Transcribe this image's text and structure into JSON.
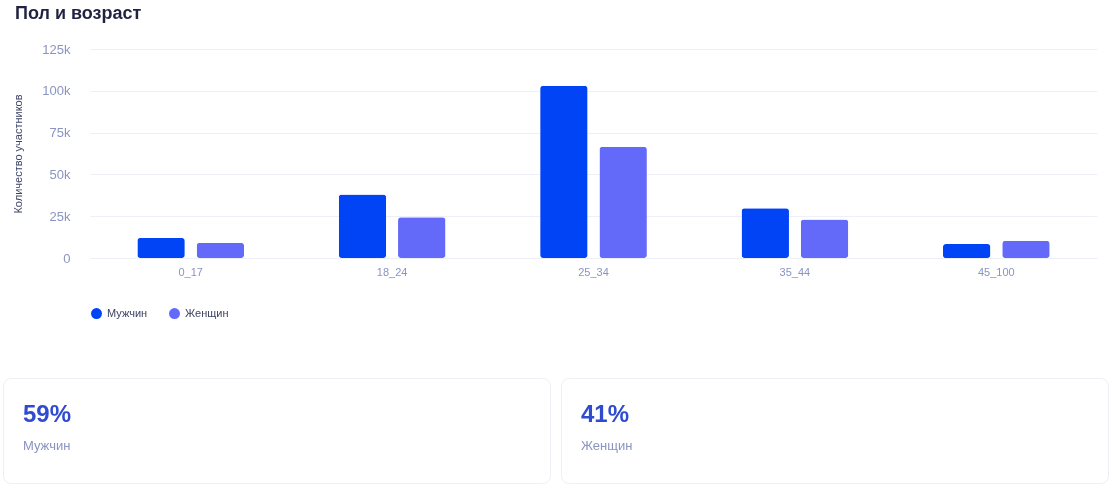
{
  "chart_data": [
    {
      "type": "bar",
      "title": "Пол и возраст",
      "ylabel": "Количество участников",
      "categories": [
        "0_17",
        "18_24",
        "25_34",
        "35_44",
        "45_100"
      ],
      "series": [
        {
          "name": "Мужчин",
          "color": "#0044f5",
          "values": [
            12000,
            38000,
            103000,
            29700,
            8300
          ]
        },
        {
          "name": "Женщин",
          "color": "#6369f8",
          "values": [
            9000,
            24400,
            66500,
            23100,
            10200
          ]
        }
      ],
      "ylim": [
        0,
        125000
      ],
      "yticks": [
        {
          "value": 0,
          "label": "0"
        },
        {
          "value": 25000,
          "label": "25k"
        },
        {
          "value": 50000,
          "label": "50k"
        },
        {
          "value": 75000,
          "label": "75k"
        },
        {
          "value": 100000,
          "label": "100k"
        },
        {
          "value": 125000,
          "label": "125k"
        }
      ],
      "grid": "y",
      "legend": "bottom"
    },
    {
      "type": "other",
      "annotations": [
        "59%",
        "Мужчин"
      ]
    },
    {
      "type": "other",
      "annotations": [
        "41%",
        "Женщин"
      ]
    }
  ]
}
